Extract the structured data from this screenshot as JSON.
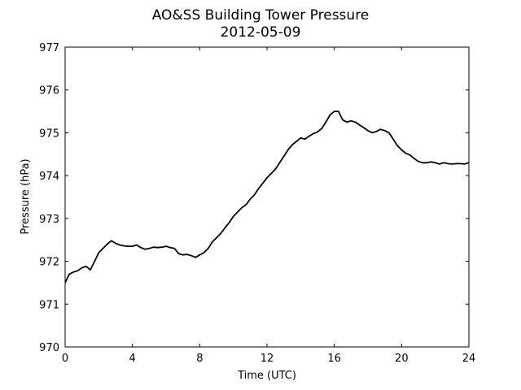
{
  "chart_data": {
    "type": "line",
    "title": "AO&SS Building Tower Pressure",
    "subtitle": "2012-05-09",
    "xlabel": "Time (UTC)",
    "ylabel": "Pressure (hPa)",
    "xlim": [
      0,
      24
    ],
    "ylim": [
      970,
      977
    ],
    "xticks": [
      0,
      4,
      8,
      12,
      16,
      20,
      24
    ],
    "yticks": [
      970,
      971,
      972,
      973,
      974,
      975,
      976,
      977
    ],
    "grid": false,
    "series": [
      {
        "color": "#000000",
        "x": [
          0,
          0.25,
          0.5,
          0.75,
          1.0,
          1.25,
          1.5,
          1.75,
          2.0,
          2.25,
          2.5,
          2.75,
          3.0,
          3.25,
          3.5,
          3.75,
          4.0,
          4.25,
          4.5,
          4.75,
          5.0,
          5.25,
          5.5,
          5.75,
          6.0,
          6.25,
          6.5,
          6.75,
          7.0,
          7.25,
          7.5,
          7.75,
          8.0,
          8.25,
          8.5,
          8.75,
          9.0,
          9.25,
          9.5,
          9.75,
          10.0,
          10.25,
          10.5,
          10.75,
          11.0,
          11.25,
          11.5,
          11.75,
          12.0,
          12.25,
          12.5,
          12.75,
          13.0,
          13.25,
          13.5,
          13.75,
          14.0,
          14.25,
          14.5,
          14.75,
          15.0,
          15.25,
          15.5,
          15.75,
          16.0,
          16.25,
          16.5,
          16.75,
          17.0,
          17.25,
          17.5,
          17.75,
          18.0,
          18.25,
          18.5,
          18.75,
          19.0,
          19.25,
          19.5,
          19.75,
          20.0,
          20.25,
          20.5,
          20.75,
          21.0,
          21.25,
          21.5,
          21.75,
          22.0,
          22.25,
          22.5,
          22.75,
          23.0,
          23.25,
          23.5,
          23.75,
          24.0
        ],
        "values": [
          971.5,
          971.7,
          971.75,
          971.78,
          971.85,
          971.88,
          971.8,
          972.0,
          972.2,
          972.3,
          972.4,
          972.48,
          972.42,
          972.38,
          972.36,
          972.35,
          972.35,
          972.38,
          972.32,
          972.28,
          972.3,
          972.33,
          972.32,
          972.33,
          972.35,
          972.32,
          972.3,
          972.18,
          972.15,
          972.16,
          972.13,
          972.09,
          972.15,
          972.2,
          972.3,
          972.45,
          972.55,
          972.65,
          972.78,
          972.9,
          973.05,
          973.15,
          973.25,
          973.32,
          973.45,
          973.55,
          973.7,
          973.82,
          973.95,
          974.05,
          974.15,
          974.3,
          974.45,
          974.6,
          974.72,
          974.8,
          974.88,
          974.85,
          974.92,
          974.98,
          975.02,
          975.1,
          975.25,
          975.42,
          975.5,
          975.5,
          975.3,
          975.25,
          975.28,
          975.25,
          975.18,
          975.12,
          975.05,
          975.0,
          975.03,
          975.08,
          975.05,
          975.0,
          974.85,
          974.7,
          974.6,
          974.52,
          974.48,
          974.4,
          974.33,
          974.3,
          974.3,
          974.32,
          974.3,
          974.27,
          974.3,
          974.28,
          974.27,
          974.28,
          974.28,
          974.27,
          974.3
        ]
      }
    ]
  }
}
